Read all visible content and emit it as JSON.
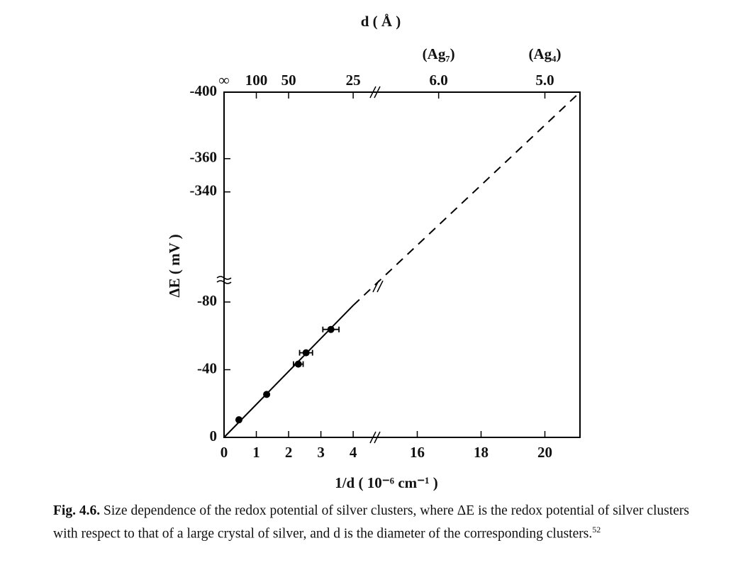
{
  "chart_data": {
    "type": "scatter",
    "title": "d ( Å )",
    "xlabel": "1/d ( 10⁻⁶ cm⁻¹ )",
    "ylabel": "ΔE ( mV )",
    "xlim": [
      0,
      21.1
    ],
    "xbreak": [
      4.7,
      14.7
    ],
    "ylim": [
      0,
      -400
    ],
    "ybreak": [
      -93,
      -287
    ],
    "xticks": [
      0,
      1,
      2,
      3,
      4,
      16,
      18,
      20
    ],
    "yticks": [
      0,
      -40,
      -80,
      -340,
      -360,
      -400
    ],
    "top_ticks": [
      {
        "value": 0,
        "label": "∞"
      },
      {
        "value": 1,
        "label": "100"
      },
      {
        "value": 2,
        "label": "50"
      },
      {
        "value": 4,
        "label": "25"
      },
      {
        "value": 16.67,
        "label": "6.0"
      },
      {
        "value": 20,
        "label": "5.0"
      }
    ],
    "annotations": [
      {
        "x": 16.67,
        "text": "(Ag₇)"
      },
      {
        "x": 20,
        "text": "(Ag₄)"
      }
    ],
    "series": [
      {
        "color": "#000000",
        "x": [
          0.46,
          1.32,
          2.3,
          2.54,
          3.31
        ],
        "values": [
          -10.4,
          -25.4,
          -43.3,
          -50,
          -63.8
        ],
        "xerr": [
          null,
          null,
          0.15,
          0.2,
          0.25
        ]
      }
    ],
    "lines": [
      {
        "style": "solid",
        "x": [
          0,
          4
        ],
        "values": [
          0,
          -78
        ]
      },
      {
        "style": "dashed",
        "x": [
          4,
          21.1
        ],
        "values": [
          -78,
          -400
        ]
      }
    ]
  },
  "caption": {
    "label": "Fig. 4.6.",
    "text": "Size dependence of the redox potential of silver clusters, where ΔE is the redox potential of silver clusters with respect to that of a large crystal of silver, and d is the diameter of the corresponding clusters.",
    "ref": "52"
  }
}
